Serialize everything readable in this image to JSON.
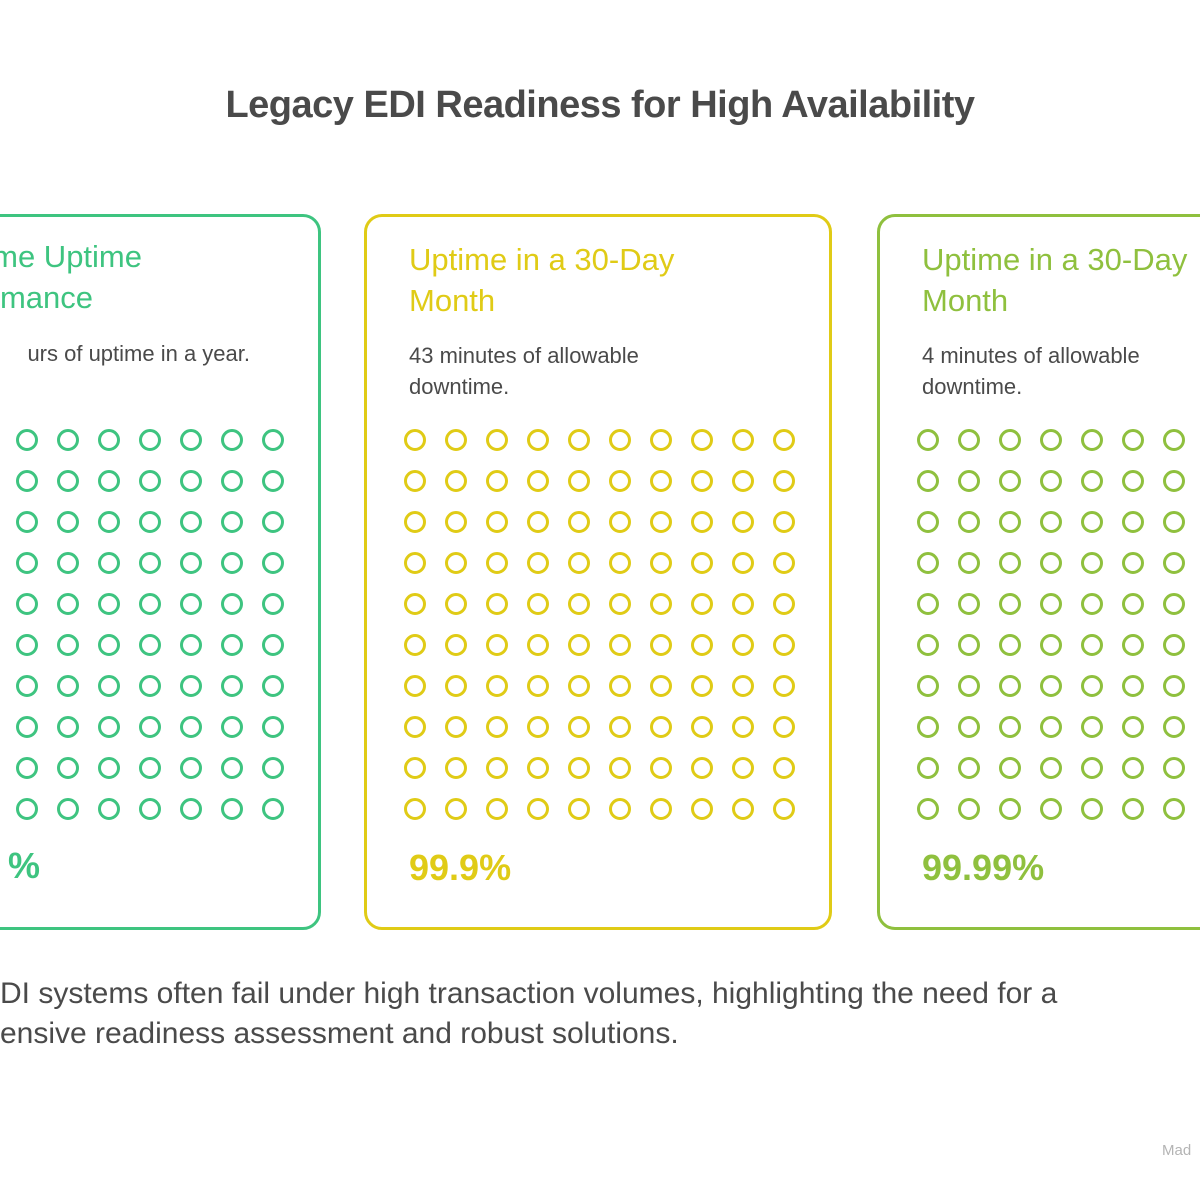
{
  "title": "Legacy EDI Readiness for High Availability",
  "cards": [
    {
      "title_lines": [
        "me Uptime",
        "mance"
      ],
      "description": "urs of uptime in a year.",
      "value": "%",
      "color": "#3ec480",
      "grid": {
        "rows": 10,
        "cols": 10
      }
    },
    {
      "title": "Uptime in a 30-Day\nMonth",
      "description": "43 minutes of allowable\ndowntime.",
      "value": "99.9%",
      "color": "#e0cb16",
      "grid": {
        "rows": 10,
        "cols": 10
      }
    },
    {
      "title": "Uptime in a 30-Day\nMonth",
      "description": "4 minutes of allowable\ndowntime.",
      "value": "99.99%",
      "color": "#8fc03e",
      "grid": {
        "rows": 10,
        "cols": 10
      }
    }
  ],
  "summary": {
    "line1": "DI systems often fail under high transaction volumes, highlighting the need for a",
    "line2": "ensive readiness assessment and robust solutions."
  },
  "watermark": "Mad",
  "colors": {
    "text": "#4a4a4a",
    "watermark": "#b4b4b4"
  }
}
